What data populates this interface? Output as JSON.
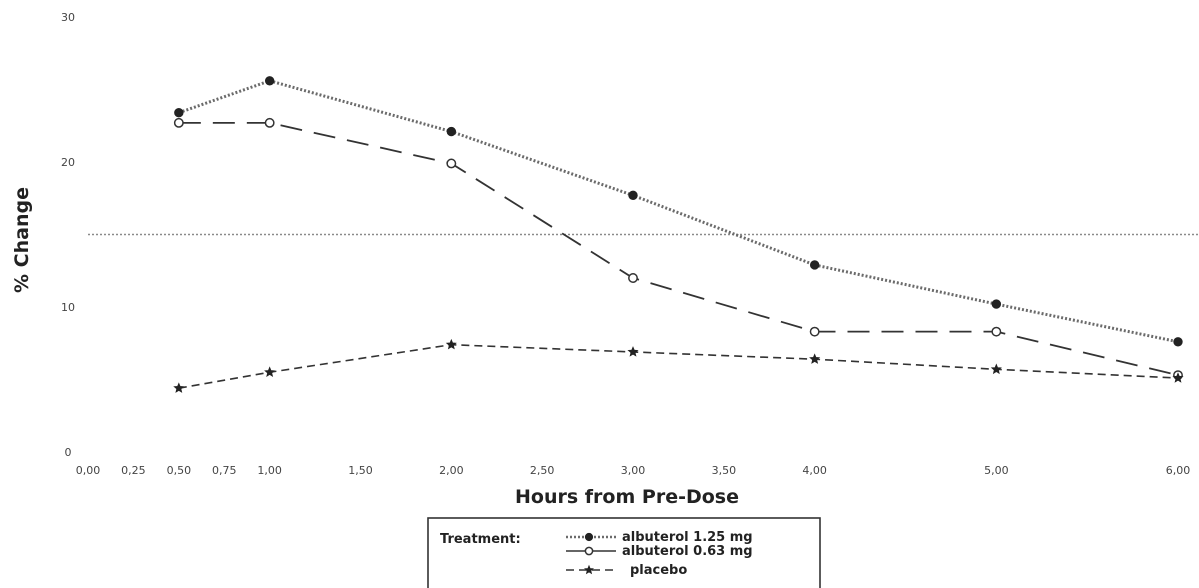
{
  "chart_data": {
    "type": "line",
    "xlabel": "Hours from Pre-Dose",
    "ylabel": "% Change",
    "xlim": [
      0,
      6
    ],
    "ylim": [
      0,
      30
    ],
    "x_ticks": [
      "0,00",
      "0,25",
      "0,50",
      "0,75",
      "1,00",
      "1,50",
      "2,00",
      "2,50",
      "3,00",
      "3,50",
      "4,00",
      "5,00",
      "6,00"
    ],
    "x_tick_values": [
      0,
      0.25,
      0.5,
      0.75,
      1.0,
      1.5,
      2.0,
      2.5,
      3.0,
      3.5,
      4.0,
      5.0,
      6.0
    ],
    "y_ticks": [
      "0",
      "10",
      "20",
      "30"
    ],
    "y_tick_values": [
      0,
      10,
      20,
      30
    ],
    "reference_line": 15,
    "grid": false,
    "legend": {
      "position": "bottom-center",
      "title": "Treatment:"
    },
    "series": [
      {
        "name": "albuterol 1.25 mg",
        "marker": "filled-circle",
        "line_style": "dotted",
        "color": "#333333",
        "x": [
          0.5,
          1.0,
          2.0,
          3.0,
          4.0,
          5.0,
          6.0
        ],
        "values": [
          23.4,
          25.6,
          22.1,
          17.7,
          12.9,
          10.2,
          7.6
        ]
      },
      {
        "name": "albuterol 0.63 mg",
        "marker": "open-circle",
        "line_style": "long-dash",
        "color": "#333333",
        "x": [
          0.5,
          1.0,
          2.0,
          3.0,
          4.0,
          5.0,
          6.0
        ],
        "values": [
          22.7,
          22.7,
          19.9,
          12.0,
          8.3,
          8.3,
          5.3
        ]
      },
      {
        "name": "placebo",
        "marker": "star",
        "line_style": "dashed",
        "color": "#333333",
        "x": [
          0.5,
          1.0,
          2.0,
          3.0,
          4.0,
          5.0,
          6.0
        ],
        "values": [
          4.4,
          5.5,
          7.4,
          6.9,
          6.4,
          5.7,
          5.1
        ]
      }
    ]
  }
}
